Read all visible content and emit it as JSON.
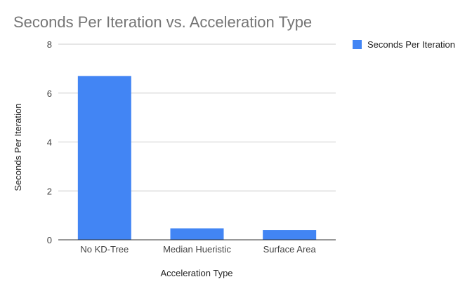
{
  "chart_data": {
    "type": "bar",
    "title": "Seconds Per Iteration vs. Acceleration Type",
    "xlabel": "Acceleration Type",
    "ylabel": "Seconds Per Iteration",
    "categories": [
      "No KD-Tree",
      "Median Hueristic",
      "Surface Area"
    ],
    "series": [
      {
        "name": "Seconds Per Iteration",
        "values": [
          6.7,
          0.47,
          0.4
        ],
        "color": "#4285f4"
      }
    ],
    "ylim": [
      0,
      8
    ],
    "yticks": [
      0,
      2,
      4,
      6,
      8
    ],
    "grid": true,
    "legend_position": "right"
  }
}
